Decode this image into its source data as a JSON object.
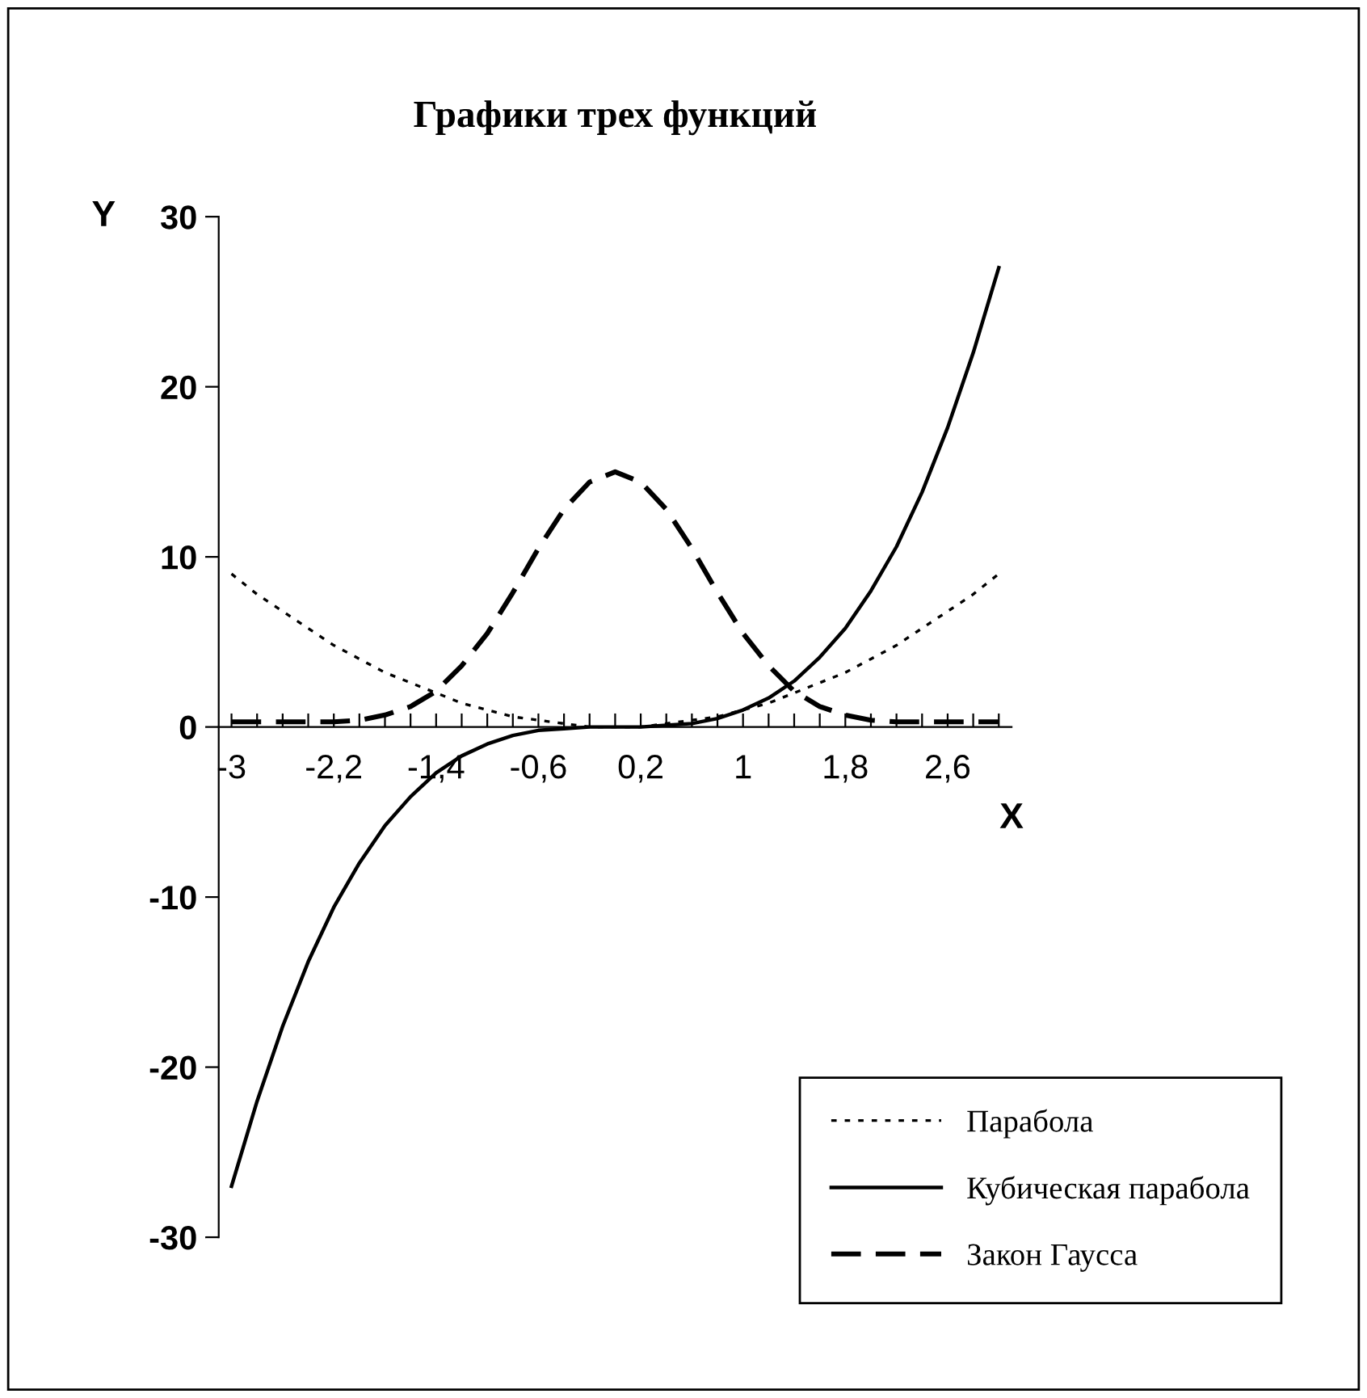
{
  "chart_data": {
    "type": "line",
    "title": "Графики трех функций",
    "xlabel": "X",
    "ylabel": "Y",
    "categories": [
      "-3",
      null,
      null,
      null,
      "-2,2",
      null,
      null,
      null,
      "-1,4",
      null,
      null,
      null,
      "-0,6",
      null,
      null,
      null,
      "0,2",
      null,
      null,
      null,
      "1",
      null,
      null,
      null,
      "1,8",
      null,
      null,
      null,
      "2,6",
      null,
      null
    ],
    "ylim": [
      -30,
      30
    ],
    "yticks": [
      -30,
      -20,
      -10,
      0,
      10,
      20,
      30
    ],
    "grid": false,
    "legend": "bottom right",
    "marker": "none",
    "series": [
      {
        "name": "Парабола",
        "color": "#000000",
        "line_style": "dotted",
        "values": [
          9,
          7.8,
          6.8,
          5.8,
          4.8,
          4,
          3.2,
          2.6,
          2,
          1.4,
          1,
          0.6,
          0.4,
          0.2,
          0,
          0,
          0,
          0.2,
          0.4,
          0.6,
          1,
          1.4,
          2,
          2.6,
          3.2,
          4,
          4.8,
          5.8,
          6.8,
          7.8,
          9
        ]
      },
      {
        "name": "Кубическая парабола",
        "color": "#000000",
        "line_style": "solid",
        "values": [
          -27,
          -22,
          -17.6,
          -13.8,
          -10.6,
          -8,
          -5.8,
          -4.1,
          -2.7,
          -1.7,
          -1,
          -0.5,
          -0.2,
          -0.1,
          0,
          0,
          0,
          0.1,
          0.2,
          0.5,
          1,
          1.7,
          2.7,
          4.1,
          5.8,
          8,
          10.6,
          13.8,
          17.6,
          22,
          27
        ]
      },
      {
        "name": "Закон Гаусса",
        "color": "#000000",
        "line_style": "dashed",
        "values": [
          0.3,
          0.3,
          0.3,
          0.3,
          0.3,
          0.4,
          0.7,
          1.2,
          2.1,
          3.6,
          5.5,
          7.9,
          10.5,
          12.8,
          14.4,
          15,
          14.4,
          12.8,
          10.5,
          7.9,
          5.5,
          3.6,
          2.1,
          1.2,
          0.7,
          0.4,
          0.3,
          0.3,
          0.3,
          0.3,
          0.3
        ]
      }
    ]
  }
}
